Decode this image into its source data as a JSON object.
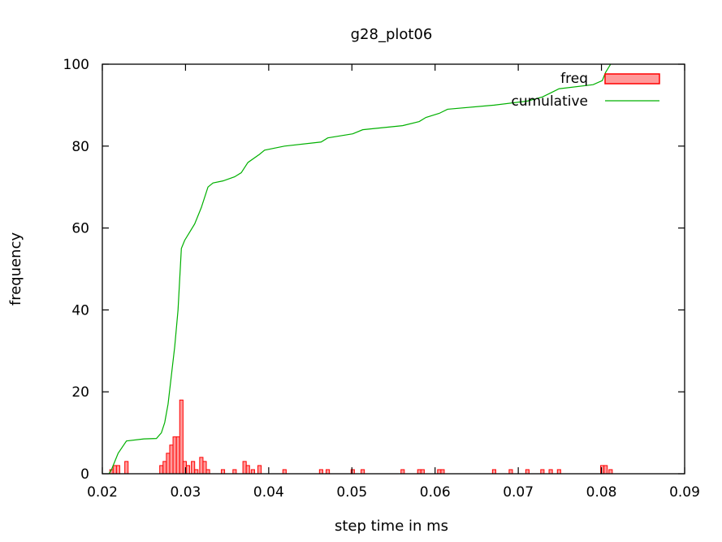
{
  "chart_data": {
    "type": "bar",
    "title": "g28_plot06",
    "xlabel": "step time in ms",
    "ylabel": "frequency",
    "xlim": [
      0.02,
      0.09
    ],
    "ylim": [
      0,
      100
    ],
    "x_ticks": [
      {
        "value": 0.02,
        "label": "0.02"
      },
      {
        "value": 0.03,
        "label": "0.03"
      },
      {
        "value": 0.04,
        "label": "0.04"
      },
      {
        "value": 0.05,
        "label": "0.05"
      },
      {
        "value": 0.06,
        "label": "0.06"
      },
      {
        "value": 0.07,
        "label": "0.07"
      },
      {
        "value": 0.08,
        "label": "0.08"
      },
      {
        "value": 0.09,
        "label": "0.09"
      }
    ],
    "y_ticks": [
      {
        "value": 0,
        "label": "0"
      },
      {
        "value": 20,
        "label": "20"
      },
      {
        "value": 40,
        "label": "40"
      },
      {
        "value": 60,
        "label": "60"
      },
      {
        "value": 80,
        "label": "80"
      },
      {
        "value": 100,
        "label": "100"
      }
    ],
    "grid": false,
    "legend_position": "top-right",
    "colors": {
      "bar_fill": "#ff9a9a",
      "bar_stroke": "#ff0000",
      "line": "#00b000",
      "axis": "#000000"
    },
    "series": [
      {
        "name": "freq",
        "kind": "histogram",
        "bin_width": 0.0004,
        "points": [
          {
            "x": 0.0211,
            "y": 1
          },
          {
            "x": 0.0215,
            "y": 2
          },
          {
            "x": 0.0219,
            "y": 2
          },
          {
            "x": 0.0229,
            "y": 3
          },
          {
            "x": 0.0271,
            "y": 2
          },
          {
            "x": 0.0275,
            "y": 3
          },
          {
            "x": 0.0279,
            "y": 5
          },
          {
            "x": 0.0283,
            "y": 7
          },
          {
            "x": 0.0287,
            "y": 9
          },
          {
            "x": 0.0291,
            "y": 9
          },
          {
            "x": 0.0295,
            "y": 18
          },
          {
            "x": 0.0299,
            "y": 3
          },
          {
            "x": 0.0303,
            "y": 2
          },
          {
            "x": 0.0309,
            "y": 3
          },
          {
            "x": 0.0313,
            "y": 1
          },
          {
            "x": 0.0319,
            "y": 4
          },
          {
            "x": 0.0323,
            "y": 3
          },
          {
            "x": 0.0327,
            "y": 1
          },
          {
            "x": 0.0345,
            "y": 1
          },
          {
            "x": 0.0359,
            "y": 1
          },
          {
            "x": 0.0371,
            "y": 3
          },
          {
            "x": 0.0375,
            "y": 2
          },
          {
            "x": 0.0381,
            "y": 1
          },
          {
            "x": 0.0389,
            "y": 2
          },
          {
            "x": 0.0419,
            "y": 1
          },
          {
            "x": 0.0463,
            "y": 1
          },
          {
            "x": 0.0471,
            "y": 1
          },
          {
            "x": 0.0501,
            "y": 1
          },
          {
            "x": 0.0513,
            "y": 1
          },
          {
            "x": 0.0561,
            "y": 1
          },
          {
            "x": 0.0581,
            "y": 1
          },
          {
            "x": 0.0585,
            "y": 1
          },
          {
            "x": 0.0605,
            "y": 1
          },
          {
            "x": 0.0609,
            "y": 1
          },
          {
            "x": 0.0671,
            "y": 1
          },
          {
            "x": 0.0691,
            "y": 1
          },
          {
            "x": 0.0711,
            "y": 1
          },
          {
            "x": 0.0729,
            "y": 1
          },
          {
            "x": 0.0739,
            "y": 1
          },
          {
            "x": 0.0749,
            "y": 1
          },
          {
            "x": 0.0801,
            "y": 2
          },
          {
            "x": 0.0805,
            "y": 2
          },
          {
            "x": 0.0811,
            "y": 1
          }
        ]
      },
      {
        "name": "cumulative",
        "kind": "line",
        "points": [
          {
            "x": 0.0208,
            "y": 0
          },
          {
            "x": 0.0211,
            "y": 1
          },
          {
            "x": 0.0215,
            "y": 3
          },
          {
            "x": 0.0219,
            "y": 5
          },
          {
            "x": 0.0229,
            "y": 8
          },
          {
            "x": 0.025,
            "y": 8.5
          },
          {
            "x": 0.0265,
            "y": 8.6
          },
          {
            "x": 0.0271,
            "y": 10
          },
          {
            "x": 0.0275,
            "y": 12.5
          },
          {
            "x": 0.0279,
            "y": 17
          },
          {
            "x": 0.0283,
            "y": 24
          },
          {
            "x": 0.0287,
            "y": 31
          },
          {
            "x": 0.0291,
            "y": 40
          },
          {
            "x": 0.0295,
            "y": 55
          },
          {
            "x": 0.0299,
            "y": 57
          },
          {
            "x": 0.0305,
            "y": 59
          },
          {
            "x": 0.0311,
            "y": 61
          },
          {
            "x": 0.0319,
            "y": 65
          },
          {
            "x": 0.0327,
            "y": 70
          },
          {
            "x": 0.0333,
            "y": 71
          },
          {
            "x": 0.0345,
            "y": 71.5
          },
          {
            "x": 0.0359,
            "y": 72.5
          },
          {
            "x": 0.0367,
            "y": 73.5
          },
          {
            "x": 0.0375,
            "y": 76
          },
          {
            "x": 0.0389,
            "y": 78
          },
          {
            "x": 0.0395,
            "y": 79
          },
          {
            "x": 0.0419,
            "y": 80
          },
          {
            "x": 0.0463,
            "y": 81
          },
          {
            "x": 0.0471,
            "y": 82
          },
          {
            "x": 0.0501,
            "y": 83
          },
          {
            "x": 0.0513,
            "y": 84
          },
          {
            "x": 0.0561,
            "y": 85
          },
          {
            "x": 0.0581,
            "y": 86
          },
          {
            "x": 0.0589,
            "y": 87
          },
          {
            "x": 0.0605,
            "y": 88
          },
          {
            "x": 0.0615,
            "y": 89
          },
          {
            "x": 0.0671,
            "y": 90
          },
          {
            "x": 0.0711,
            "y": 91
          },
          {
            "x": 0.0729,
            "y": 92
          },
          {
            "x": 0.0739,
            "y": 93
          },
          {
            "x": 0.0749,
            "y": 94
          },
          {
            "x": 0.079,
            "y": 95
          },
          {
            "x": 0.0801,
            "y": 96
          },
          {
            "x": 0.0805,
            "y": 98
          },
          {
            "x": 0.0811,
            "y": 100
          }
        ]
      }
    ]
  }
}
